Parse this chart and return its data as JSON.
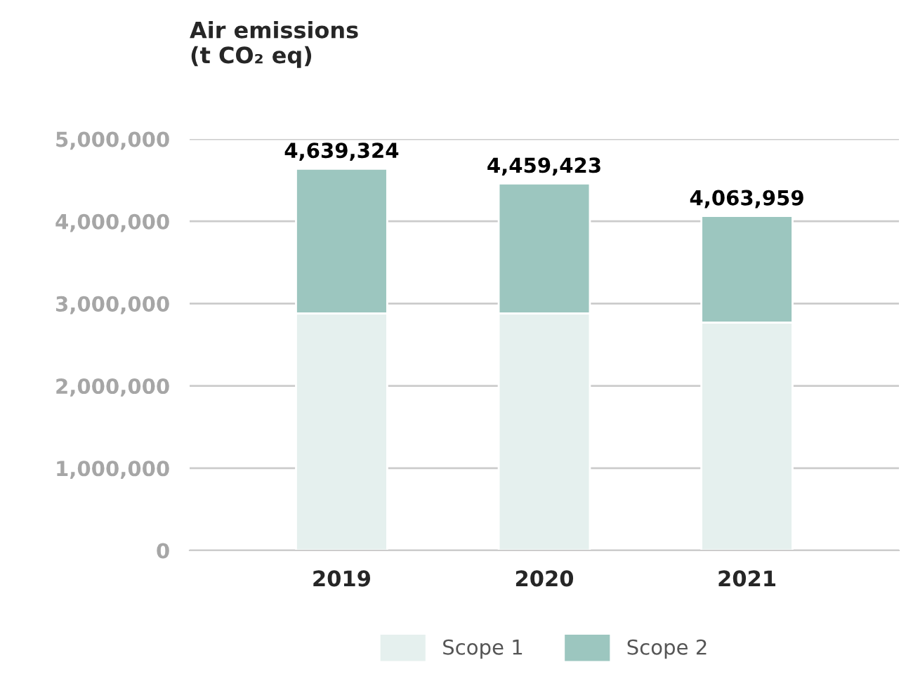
{
  "chart_data": {
    "type": "bar",
    "title": "Air emissions\n(t CO₂ eq)",
    "stacked": true,
    "categories": [
      "2019",
      "2020",
      "2021"
    ],
    "series": [
      {
        "name": "Scope 1",
        "color": "#e5f0ee",
        "values": [
          2880000,
          2880000,
          2770000
        ]
      },
      {
        "name": "Scope 2",
        "color": "#9cc6bf",
        "values": [
          1759324,
          1579423,
          1293959
        ]
      }
    ],
    "totals": [
      "4,639,324",
      "4,459,423",
      "4,063,959"
    ],
    "ylim": [
      0,
      5000000
    ],
    "yticks": [
      {
        "value": 0,
        "label": "0"
      },
      {
        "value": 1000000,
        "label": "1,000,000"
      },
      {
        "value": 2000000,
        "label": "2,000,000"
      },
      {
        "value": 3000000,
        "label": "3,000,000"
      },
      {
        "value": 4000000,
        "label": "4,000,000"
      },
      {
        "value": 5000000,
        "label": "5,000,000"
      }
    ],
    "grid": "y",
    "legend": "bottom"
  }
}
